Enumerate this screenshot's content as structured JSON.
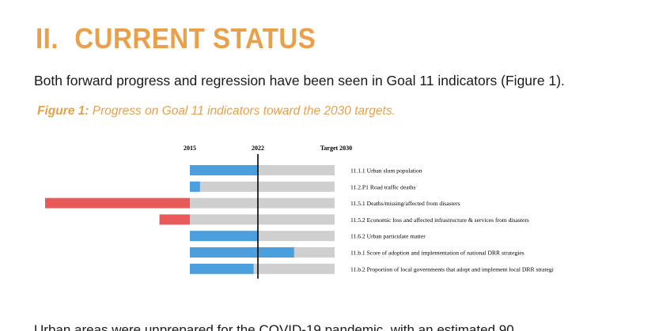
{
  "heading": {
    "number": "II.",
    "title": "CURRENT STATUS"
  },
  "intro": "Both forward progress and regression have been seen in Goal 11 indicators (Figure 1).",
  "caption": {
    "label": "Figure 1:",
    "text": " Progress on Goal 11 indicators toward the 2030 targets."
  },
  "chart_data": {
    "type": "bar",
    "ticks": [
      "2015",
      "2022",
      "Target 2030"
    ],
    "categories": [
      "11.1.1 Urban slum population",
      "11.2.P1 Road traffic deaths",
      "11.5.1 Deaths/missing/affected from disasters",
      "11.5.2 Economic loss and affected infrastructure & services from disasters",
      "11.6.2 Urban particulate matter",
      "11.b.1 Score of adoption and implementation of national DRR strategies",
      "11.b.2 Proportion of local governments that adopt and implement local DRR strategi"
    ],
    "values": [
      47,
      7,
      -100,
      -21,
      47,
      72,
      44
    ],
    "expected_2022": 47,
    "xlim": [
      -100,
      100
    ],
    "colors": {
      "progress": "#4a9fdc",
      "regression": "#e85a5a",
      "track": "#cfcfcf",
      "marker": "#000000"
    }
  },
  "footer_text": "Urban areas were unprepared for the COVID-19 pandemic, with an estimated 90"
}
